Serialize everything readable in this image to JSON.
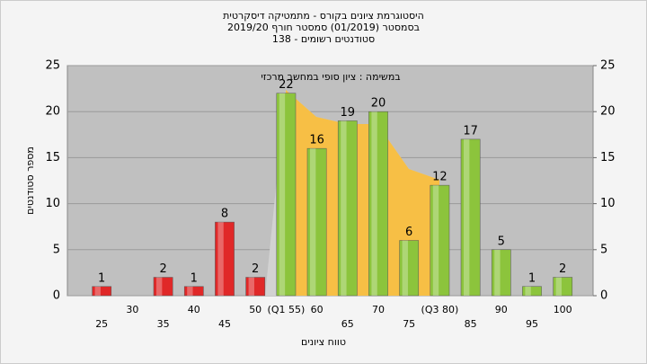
{
  "chart_data": {
    "type": "bar",
    "title": "היסטוגרמת ציונים בקורס - מתמטיקה דיסקרטית",
    "subtitle": "בסמסטר  (01/2019)  סמסטר חורף 2019/20",
    "subtitle2": "סטודנטים רשומים - 138",
    "annotation": "במשימה : ציון סופי במחשב מרכזי",
    "y_label": "מספר סטודנטים",
    "x_label": "טווח ציונים",
    "categories": [
      "25",
      "30",
      "35",
      "40",
      "45",
      "50",
      "(Q1 55)",
      "60",
      "65",
      "70",
      "75",
      "(Q3 80)",
      "85",
      "90",
      "95",
      "100"
    ],
    "values": [
      1,
      0,
      2,
      1,
      8,
      2,
      22,
      16,
      19,
      20,
      6,
      12,
      17,
      5,
      1,
      2
    ],
    "colors": [
      "#e02828",
      "#e02828",
      "#e02828",
      "#e02828",
      "#e02828",
      "#e02828",
      "#8cc43c",
      "#8cc43c",
      "#8cc43c",
      "#8cc43c",
      "#8cc43c",
      "#8cc43c",
      "#8cc43c",
      "#8cc43c",
      "#8cc43c",
      "#8cc43c"
    ],
    "ylim": [
      0,
      25
    ],
    "yticks": [
      0,
      5,
      10,
      15,
      20,
      25
    ],
    "y2lim": [
      0,
      25
    ],
    "y2ticks": [
      0,
      5,
      10,
      15,
      20,
      25
    ],
    "grid": true
  }
}
